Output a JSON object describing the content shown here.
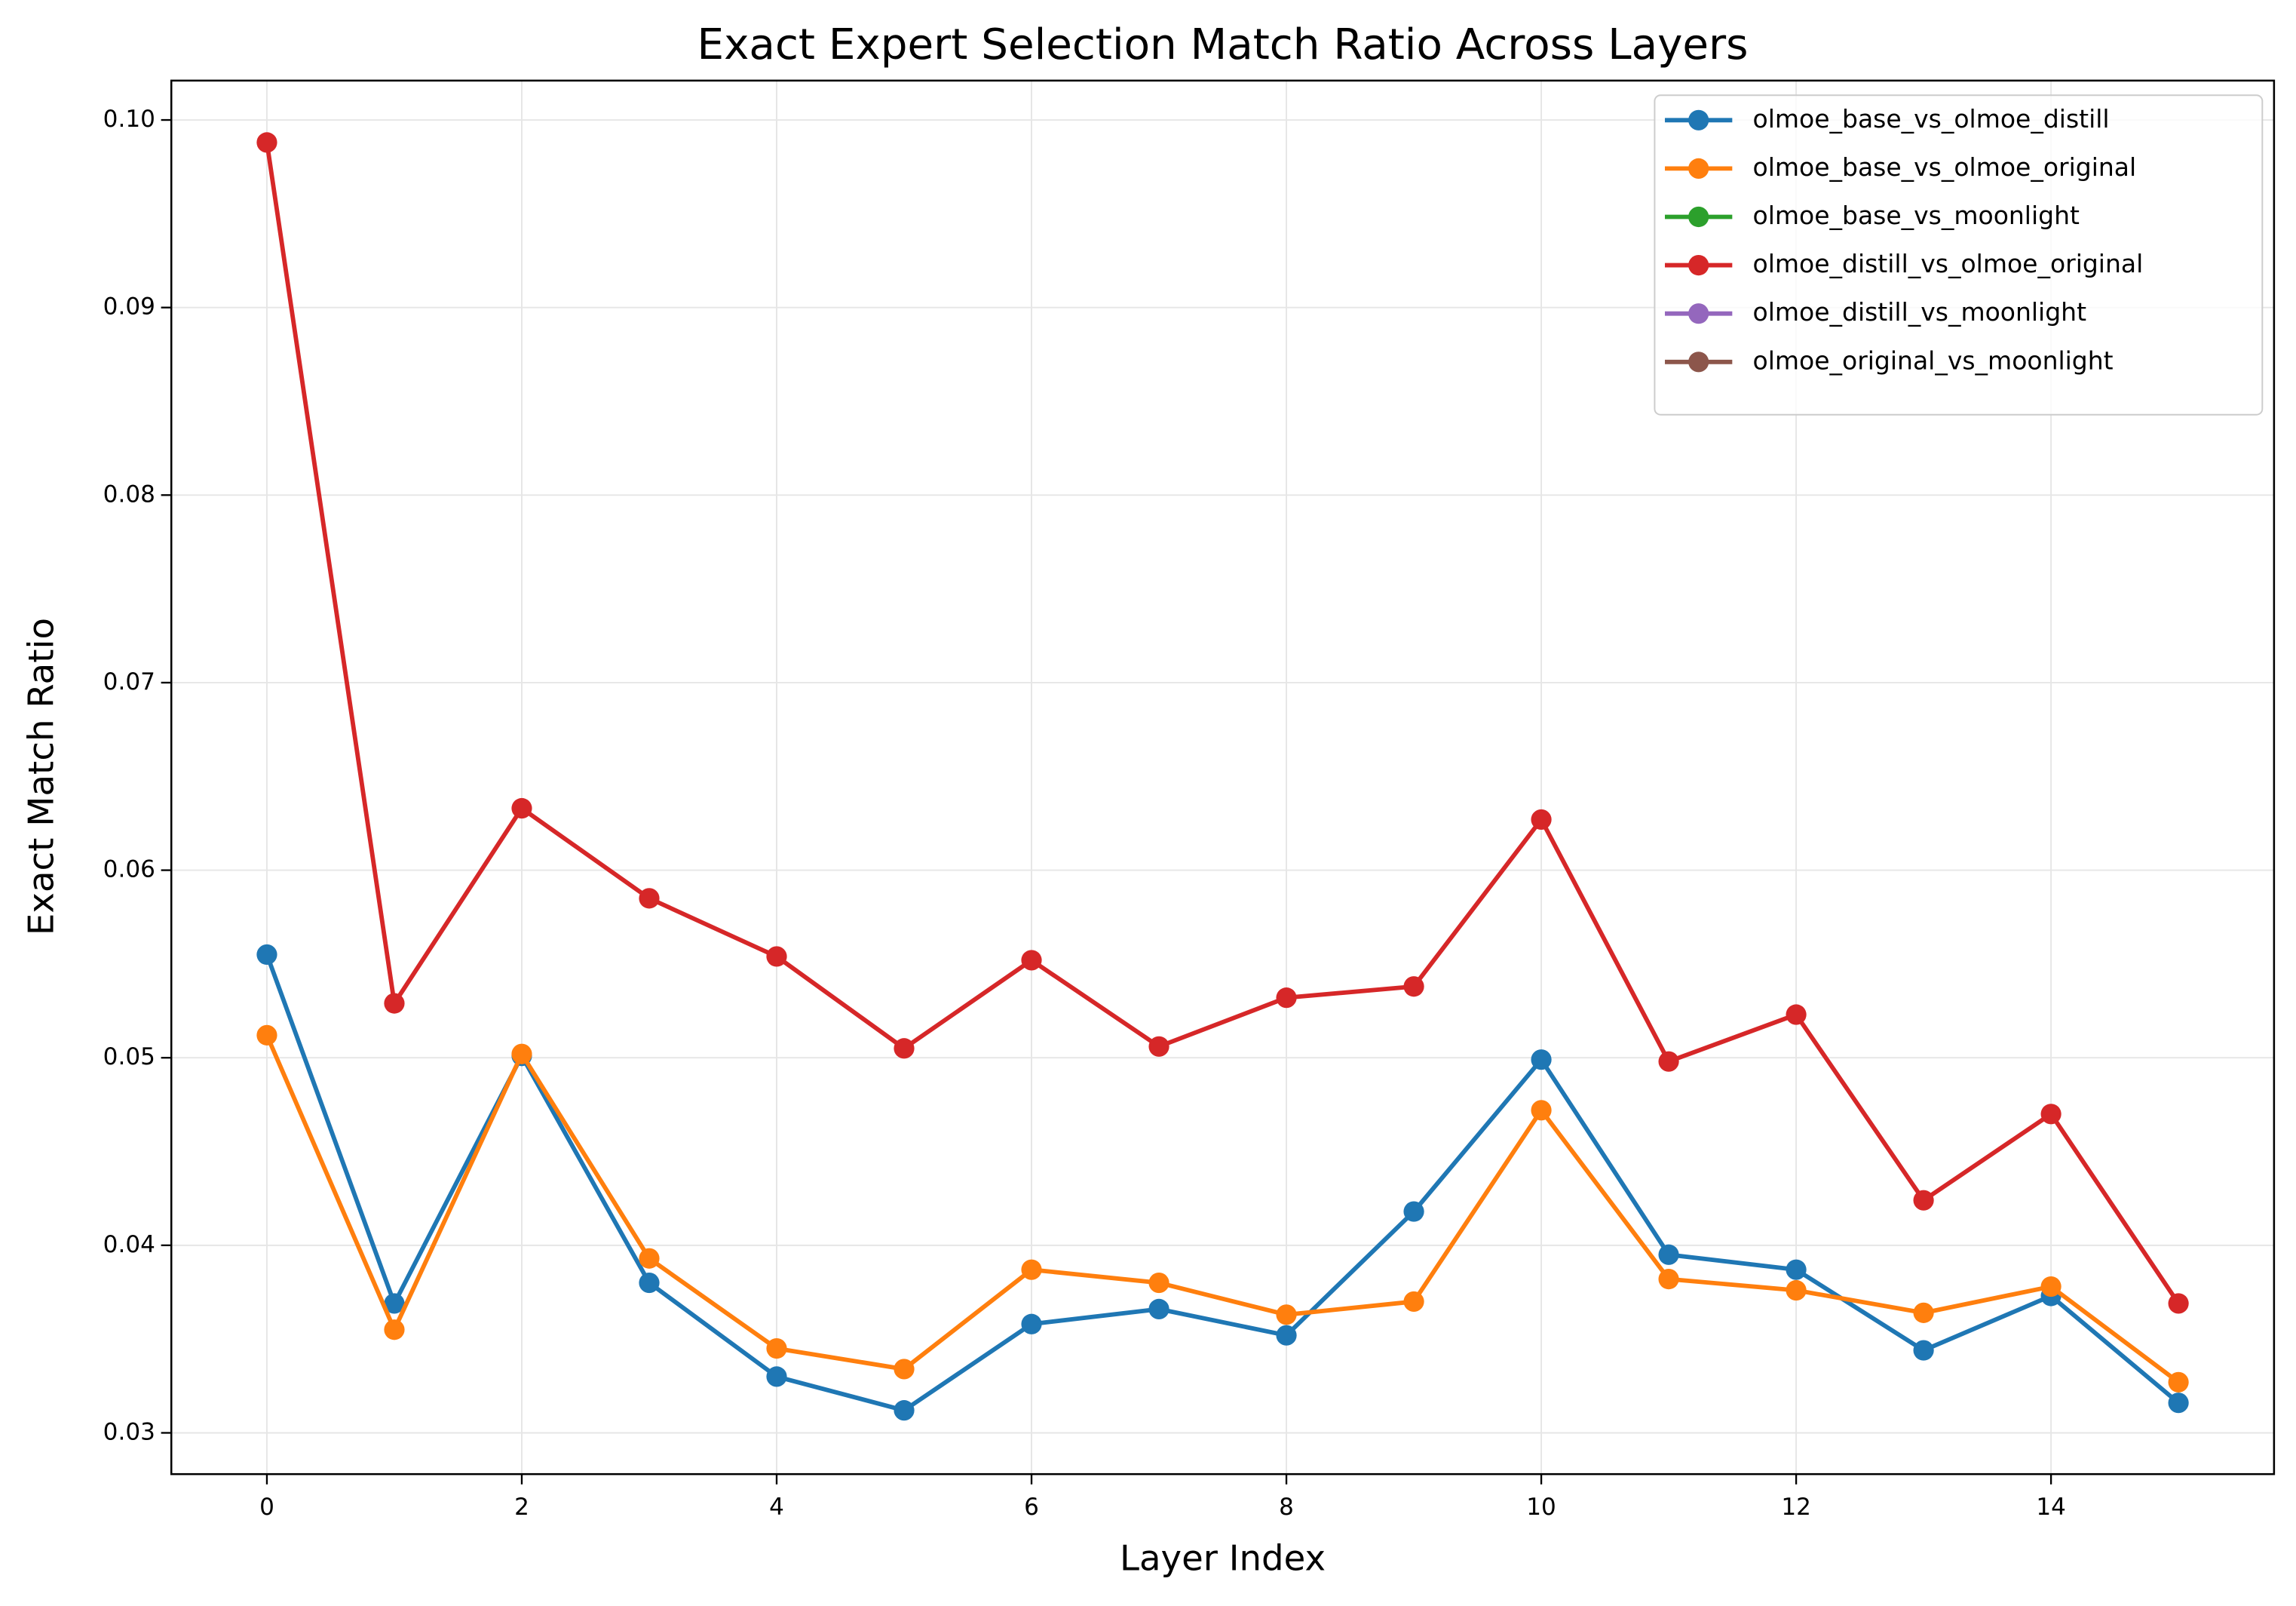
{
  "chart_data": {
    "type": "line",
    "title": "Exact Expert Selection Match Ratio Across Layers",
    "x_label": "Layer Index",
    "y_label": "Exact Match Ratio",
    "x": [
      0,
      1,
      2,
      3,
      4,
      5,
      6,
      7,
      8,
      9,
      10,
      11,
      12,
      13,
      14,
      15
    ],
    "series": [
      {
        "name": "olmoe_base_vs_olmoe_distill",
        "color": "#1f77b4",
        "values": [
          0.0555,
          0.0369,
          0.0501,
          0.038,
          0.033,
          0.0312,
          0.0358,
          0.0366,
          0.0352,
          0.0418,
          0.0499,
          0.0395,
          0.0387,
          0.0344,
          0.0373,
          0.0316
        ]
      },
      {
        "name": "olmoe_base_vs_olmoe_original",
        "color": "#ff7f0e",
        "values": [
          0.0512,
          0.0355,
          0.0502,
          0.0393,
          0.0345,
          0.0334,
          0.0387,
          0.038,
          0.0363,
          0.037,
          0.0472,
          0.0382,
          0.0376,
          0.0364,
          0.0378,
          0.0327
        ]
      },
      {
        "name": "olmoe_base_vs_moonlight",
        "color": "#2ca02c",
        "values": [
          null,
          null,
          null,
          null,
          null,
          null,
          null,
          null,
          null,
          null,
          null,
          null,
          null,
          null,
          null,
          null
        ]
      },
      {
        "name": "olmoe_distill_vs_olmoe_original",
        "color": "#d62728",
        "values": [
          0.0988,
          0.0529,
          0.0633,
          0.0585,
          0.0554,
          0.0505,
          0.0552,
          0.0506,
          0.0532,
          0.0538,
          0.0627,
          0.0498,
          0.0523,
          0.0424,
          0.047,
          0.0369
        ]
      },
      {
        "name": "olmoe_distill_vs_moonlight",
        "color": "#9467bd",
        "values": [
          null,
          null,
          null,
          null,
          null,
          null,
          null,
          null,
          null,
          null,
          null,
          null,
          null,
          null,
          null,
          null
        ]
      },
      {
        "name": "olmoe_original_vs_moonlight",
        "color": "#8c564b",
        "values": [
          null,
          null,
          null,
          null,
          null,
          null,
          null,
          null,
          null,
          null,
          null,
          null,
          null,
          null,
          null,
          null
        ]
      }
    ],
    "xlim": [
      -0.75,
      15.75
    ],
    "xticks": [
      0,
      2,
      4,
      6,
      8,
      10,
      12,
      14
    ],
    "ylim": [
      0.0278,
      0.1021
    ],
    "yticks": [
      0.03,
      0.04,
      0.05,
      0.06,
      0.07,
      0.08,
      0.09,
      {
        "value": 0.1,
        "label": "0.10"
      }
    ],
    "grid": true,
    "legend": "upper right"
  }
}
